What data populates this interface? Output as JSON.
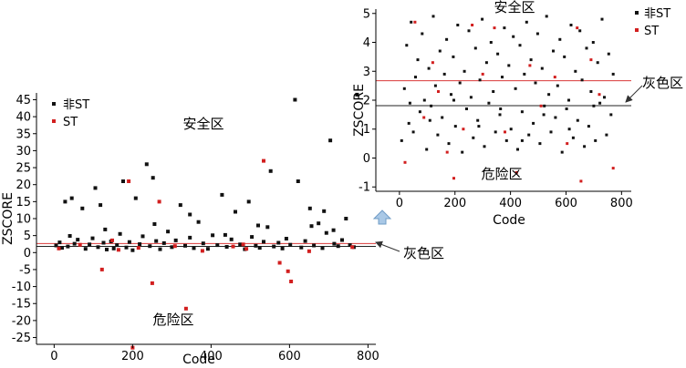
{
  "chart_data": [
    {
      "type": "scatter",
      "name": "main",
      "xlabel": "Code",
      "ylabel": "ZSCORE",
      "xlim": [
        -45,
        820
      ],
      "ylim": [
        -27,
        47
      ],
      "xticks": [
        0,
        200,
        400,
        600,
        800
      ],
      "yticks": [
        45,
        40,
        35,
        30,
        25,
        20,
        15,
        10,
        5,
        0,
        -5,
        -10,
        -15,
        -20,
        -25
      ],
      "ref_lines": [
        {
          "label": "grey-upper",
          "value": 2.675,
          "color": "#d93a3a"
        },
        {
          "label": "grey-lower",
          "value": 1.81,
          "color": "#222222"
        }
      ],
      "zones": {
        "safe": "安全区",
        "grey": "灰色区",
        "danger": "危险区"
      },
      "legend": [
        {
          "name": "非ST",
          "color": "#111111"
        },
        {
          "name": "ST",
          "color": "#d21f1f"
        }
      ],
      "series": [
        {
          "name": "非ST",
          "color": "#111111",
          "points": [
            [
              5,
              2.1
            ],
            [
              14,
              3.0
            ],
            [
              20,
              1.4
            ],
            [
              28,
              15
            ],
            [
              35,
              1.8
            ],
            [
              45,
              16
            ],
            [
              52,
              2.6
            ],
            [
              60,
              3.8
            ],
            [
              72,
              13
            ],
            [
              80,
              1.1
            ],
            [
              90,
              2.4
            ],
            [
              98,
              4.2
            ],
            [
              105,
              19
            ],
            [
              112,
              1.6
            ],
            [
              118,
              14
            ],
            [
              126,
              2.9
            ],
            [
              134,
              0.9
            ],
            [
              145,
              3.3
            ],
            [
              152,
              1.2
            ],
            [
              160,
              2.2
            ],
            [
              168,
              5.5
            ],
            [
              176,
              21
            ],
            [
              184,
              1.5
            ],
            [
              192,
              3.1
            ],
            [
              200,
              0.7
            ],
            [
              208,
              16
            ],
            [
              218,
              2.5
            ],
            [
              226,
              4.8
            ],
            [
              236,
              26
            ],
            [
              244,
              1.9
            ],
            [
              252,
              22
            ],
            [
              260,
              3.4
            ],
            [
              270,
              1.0
            ],
            [
              280,
              2.8
            ],
            [
              290,
              6.2
            ],
            [
              300,
              1.6
            ],
            [
              310,
              3.6
            ],
            [
              322,
              14
            ],
            [
              334,
              2.0
            ],
            [
              346,
              4.4
            ],
            [
              356,
              1.3
            ],
            [
              368,
              9
            ],
            [
              380,
              2.7
            ],
            [
              392,
              1.1
            ],
            [
              404,
              5.1
            ],
            [
              416,
              2.2
            ],
            [
              428,
              17
            ],
            [
              440,
              1.7
            ],
            [
              452,
              3.9
            ],
            [
              462,
              12
            ],
            [
              474,
              2.4
            ],
            [
              486,
              1.0
            ],
            [
              496,
              15
            ],
            [
              504,
              4.6
            ],
            [
              514,
              2.0
            ],
            [
              524,
              1.4
            ],
            [
              534,
              3.2
            ],
            [
              544,
              7.5
            ],
            [
              552,
              24
            ],
            [
              560,
              1.8
            ],
            [
              572,
              2.9
            ],
            [
              582,
              1.2
            ],
            [
              592,
              4.1
            ],
            [
              602,
              2.3
            ],
            [
              614,
              45
            ],
            [
              622,
              21
            ],
            [
              630,
              1.5
            ],
            [
              640,
              3.4
            ],
            [
              652,
              13
            ],
            [
              662,
              2.1
            ],
            [
              674,
              8.6
            ],
            [
              684,
              1.3
            ],
            [
              694,
              5.8
            ],
            [
              704,
              33
            ],
            [
              714,
              2.6
            ],
            [
              724,
              1.9
            ],
            [
              734,
              3.7
            ],
            [
              744,
              10
            ],
            [
              754,
              2.2
            ],
            [
              764,
              1.6
            ],
            [
              772,
              46.5
            ],
            [
              40,
              4.9
            ],
            [
              130,
              6.8
            ],
            [
              256,
              8.4
            ],
            [
              346,
              11.2
            ],
            [
              436,
              5.2
            ],
            [
              520,
              8.0
            ],
            [
              656,
              7.8
            ],
            [
              712,
              6.6
            ],
            [
              688,
              12.2
            ]
          ]
        },
        {
          "name": "ST",
          "color": "#d21f1f",
          "points": [
            [
              12,
              1.2
            ],
            [
              66,
              2.3
            ],
            [
              122,
              -5
            ],
            [
              164,
              0.8
            ],
            [
              190,
              21
            ],
            [
              200,
              -28
            ],
            [
              215,
              1.4
            ],
            [
              250,
              -9
            ],
            [
              268,
              15
            ],
            [
              308,
              1.9
            ],
            [
              336,
              -16.5
            ],
            [
              378,
              0.5
            ],
            [
              456,
              1.8
            ],
            [
              490,
              1.1
            ],
            [
              534,
              27
            ],
            [
              575,
              -3
            ],
            [
              596,
              -5.5
            ],
            [
              604,
              -8.5
            ],
            [
              650,
              0.4
            ],
            [
              760,
              1.6
            ],
            [
              148,
              3.6
            ],
            [
              482,
              2.4
            ]
          ]
        }
      ]
    },
    {
      "type": "scatter",
      "name": "inset",
      "xlabel": "Code",
      "ylabel": "ZSCORE",
      "xlim": [
        -85,
        835
      ],
      "ylim": [
        -1.15,
        5.15
      ],
      "xticks": [
        0,
        200,
        400,
        600,
        800
      ],
      "yticks": [
        5,
        4,
        3,
        2,
        1,
        0,
        -1
      ],
      "ref_lines": [
        {
          "label": "grey-upper",
          "value": 2.675,
          "color": "#d93a3a"
        },
        {
          "label": "grey-lower",
          "value": 1.81,
          "color": "#222222"
        }
      ],
      "zones": {
        "safe": "安全区",
        "grey": "灰色区",
        "danger": "危险区"
      },
      "legend": [
        {
          "name": "非ST",
          "color": "#111111"
        },
        {
          "name": "ST",
          "color": "#d21f1f"
        }
      ],
      "series": [
        {
          "name": "非ST",
          "color": "#111111",
          "points": [
            [
              8,
              0.6
            ],
            [
              18,
              2.4
            ],
            [
              26,
              3.9
            ],
            [
              34,
              1.2
            ],
            [
              42,
              4.7
            ],
            [
              50,
              0.9
            ],
            [
              58,
              2.8
            ],
            [
              66,
              3.4
            ],
            [
              74,
              1.6
            ],
            [
              82,
              4.3
            ],
            [
              90,
              2.0
            ],
            [
              98,
              0.3
            ],
            [
              106,
              3.1
            ],
            [
              114,
              1.8
            ],
            [
              122,
              4.9
            ],
            [
              130,
              2.5
            ],
            [
              138,
              0.8
            ],
            [
              146,
              3.7
            ],
            [
              154,
              1.4
            ],
            [
              162,
              2.9
            ],
            [
              170,
              4.1
            ],
            [
              178,
              0.5
            ],
            [
              186,
              2.2
            ],
            [
              194,
              3.5
            ],
            [
              202,
              1.1
            ],
            [
              210,
              4.6
            ],
            [
              218,
              2.6
            ],
            [
              226,
              0.2
            ],
            [
              234,
              3.0
            ],
            [
              242,
              1.7
            ],
            [
              250,
              4.4
            ],
            [
              258,
              2.1
            ],
            [
              266,
              0.7
            ],
            [
              274,
              3.8
            ],
            [
              282,
              1.3
            ],
            [
              290,
              2.7
            ],
            [
              298,
              4.8
            ],
            [
              306,
              0.4
            ],
            [
              314,
              3.3
            ],
            [
              322,
              1.9
            ],
            [
              330,
              4.0
            ],
            [
              338,
              2.3
            ],
            [
              346,
              0.9
            ],
            [
              354,
              3.6
            ],
            [
              362,
              1.5
            ],
            [
              370,
              2.8
            ],
            [
              378,
              4.5
            ],
            [
              386,
              0.6
            ],
            [
              394,
              3.2
            ],
            [
              402,
              1.0
            ],
            [
              410,
              4.2
            ],
            [
              418,
              2.4
            ],
            [
              426,
              0.3
            ],
            [
              434,
              3.9
            ],
            [
              442,
              1.6
            ],
            [
              450,
              2.9
            ],
            [
              458,
              4.7
            ],
            [
              466,
              0.8
            ],
            [
              474,
              3.4
            ],
            [
              482,
              1.2
            ],
            [
              490,
              2.6
            ],
            [
              498,
              4.3
            ],
            [
              506,
              0.5
            ],
            [
              514,
              3.1
            ],
            [
              522,
              1.8
            ],
            [
              530,
              4.9
            ],
            [
              538,
              2.2
            ],
            [
              546,
              0.9
            ],
            [
              554,
              3.7
            ],
            [
              562,
              1.4
            ],
            [
              570,
              2.5
            ],
            [
              578,
              4.1
            ],
            [
              586,
              0.2
            ],
            [
              594,
              3.5
            ],
            [
              602,
              1.7
            ],
            [
              610,
              2.0
            ],
            [
              618,
              4.6
            ],
            [
              626,
              0.7
            ],
            [
              634,
              3.0
            ],
            [
              642,
              1.3
            ],
            [
              650,
              4.4
            ],
            [
              658,
              2.7
            ],
            [
              666,
              0.4
            ],
            [
              674,
              3.8
            ],
            [
              682,
              1.1
            ],
            [
              690,
              2.3
            ],
            [
              698,
              4.0
            ],
            [
              706,
              0.6
            ],
            [
              714,
              3.3
            ],
            [
              722,
              1.9
            ],
            [
              730,
              4.8
            ],
            [
              738,
              2.1
            ],
            [
              746,
              0.8
            ],
            [
              754,
              3.6
            ],
            [
              762,
              1.5
            ],
            [
              770,
              2.9
            ],
            [
              38,
              1.9
            ],
            [
              110,
              1.3
            ],
            [
              196,
              2.0
            ],
            [
              286,
              1.1
            ],
            [
              364,
              1.7
            ],
            [
              442,
              0.6
            ],
            [
              520,
              1.5
            ],
            [
              612,
              1.0
            ],
            [
              700,
              1.8
            ]
          ]
        },
        {
          "name": "ST",
          "color": "#d21f1f",
          "points": [
            [
              20,
              -0.15
            ],
            [
              56,
              4.7
            ],
            [
              88,
              1.4
            ],
            [
              140,
              2.3
            ],
            [
              172,
              0.2
            ],
            [
              196,
              -0.7
            ],
            [
              230,
              1.0
            ],
            [
              262,
              4.6
            ],
            [
              300,
              2.9
            ],
            [
              342,
              4.5
            ],
            [
              380,
              0.9
            ],
            [
              422,
              -0.5
            ],
            [
              470,
              3.2
            ],
            [
              510,
              1.8
            ],
            [
              560,
              2.8
            ],
            [
              604,
              0.5
            ],
            [
              640,
              4.5
            ],
            [
              654,
              -0.8
            ],
            [
              690,
              3.4
            ],
            [
              770,
              -0.35
            ],
            [
              120,
              3.3
            ],
            [
              720,
              2.2
            ]
          ]
        }
      ]
    }
  ]
}
